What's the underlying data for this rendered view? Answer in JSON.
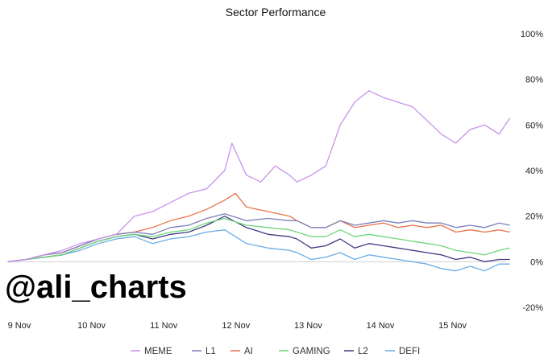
{
  "chart_data": {
    "type": "line",
    "title": "Sector Performance",
    "x_ticks": [
      "9 Nov",
      "10 Nov",
      "11 Nov",
      "12 Nov",
      "13 Nov",
      "14 Nov",
      "15 Nov"
    ],
    "x_range": [
      0,
      6.95
    ],
    "y_ticks": [
      "100%",
      "80%",
      "60%",
      "40%",
      "20%",
      "0%",
      "-20%"
    ],
    "y_tick_values": [
      100,
      80,
      60,
      40,
      20,
      0,
      -20
    ],
    "ylim": [
      -20,
      100
    ],
    "y_axis_side": "right",
    "grid": false,
    "legend_position": "bottom",
    "series": [
      {
        "name": "MEME",
        "color": "#c792ea",
        "points": [
          [
            0,
            0
          ],
          [
            0.25,
            1
          ],
          [
            0.5,
            3
          ],
          [
            0.75,
            5
          ],
          [
            1,
            8
          ],
          [
            1.25,
            10
          ],
          [
            1.5,
            12
          ],
          [
            1.75,
            20
          ],
          [
            2,
            22
          ],
          [
            2.25,
            26
          ],
          [
            2.5,
            30
          ],
          [
            2.75,
            32
          ],
          [
            3,
            40
          ],
          [
            3.1,
            52
          ],
          [
            3.3,
            38
          ],
          [
            3.5,
            35
          ],
          [
            3.7,
            42
          ],
          [
            3.9,
            38
          ],
          [
            4,
            35
          ],
          [
            4.2,
            38
          ],
          [
            4.4,
            42
          ],
          [
            4.6,
            60
          ],
          [
            4.8,
            70
          ],
          [
            5,
            75
          ],
          [
            5.2,
            72
          ],
          [
            5.4,
            70
          ],
          [
            5.6,
            68
          ],
          [
            5.8,
            62
          ],
          [
            6,
            56
          ],
          [
            6.2,
            52
          ],
          [
            6.4,
            58
          ],
          [
            6.6,
            60
          ],
          [
            6.8,
            56
          ],
          [
            6.95,
            63
          ]
        ]
      },
      {
        "name": "L1",
        "color": "#7b7fb8",
        "points": [
          [
            0,
            0
          ],
          [
            0.25,
            1
          ],
          [
            0.5,
            3
          ],
          [
            0.75,
            4
          ],
          [
            1,
            7
          ],
          [
            1.25,
            10
          ],
          [
            1.5,
            12
          ],
          [
            1.75,
            13
          ],
          [
            2,
            12
          ],
          [
            2.25,
            15
          ],
          [
            2.5,
            16
          ],
          [
            2.75,
            19
          ],
          [
            3,
            21
          ],
          [
            3.3,
            18
          ],
          [
            3.6,
            19
          ],
          [
            3.9,
            18
          ],
          [
            4,
            18
          ],
          [
            4.2,
            15
          ],
          [
            4.4,
            15
          ],
          [
            4.6,
            18
          ],
          [
            4.8,
            16
          ],
          [
            5,
            17
          ],
          [
            5.2,
            18
          ],
          [
            5.4,
            17
          ],
          [
            5.6,
            18
          ],
          [
            5.8,
            17
          ],
          [
            6,
            17
          ],
          [
            6.2,
            15
          ],
          [
            6.4,
            16
          ],
          [
            6.6,
            15
          ],
          [
            6.8,
            17
          ],
          [
            6.95,
            16
          ]
        ]
      },
      {
        "name": "AI",
        "color": "#e8734a",
        "points": [
          [
            0,
            0
          ],
          [
            0.25,
            1
          ],
          [
            0.5,
            3
          ],
          [
            0.75,
            4
          ],
          [
            1,
            7
          ],
          [
            1.25,
            10
          ],
          [
            1.5,
            12
          ],
          [
            1.75,
            13
          ],
          [
            2,
            15
          ],
          [
            2.25,
            18
          ],
          [
            2.5,
            20
          ],
          [
            2.75,
            23
          ],
          [
            3,
            27
          ],
          [
            3.15,
            30
          ],
          [
            3.3,
            24
          ],
          [
            3.6,
            22
          ],
          [
            3.9,
            20
          ],
          [
            4,
            18
          ],
          [
            4.2,
            15
          ],
          [
            4.4,
            15
          ],
          [
            4.6,
            18
          ],
          [
            4.8,
            15
          ],
          [
            5,
            16
          ],
          [
            5.2,
            17
          ],
          [
            5.4,
            15
          ],
          [
            5.6,
            16
          ],
          [
            5.8,
            15
          ],
          [
            6,
            16
          ],
          [
            6.2,
            13
          ],
          [
            6.4,
            14
          ],
          [
            6.6,
            13
          ],
          [
            6.8,
            14
          ],
          [
            6.95,
            13
          ]
        ]
      },
      {
        "name": "GAMING",
        "color": "#6fd67a",
        "points": [
          [
            0,
            0
          ],
          [
            0.25,
            1
          ],
          [
            0.5,
            2
          ],
          [
            0.75,
            3
          ],
          [
            1,
            6
          ],
          [
            1.25,
            9
          ],
          [
            1.5,
            11
          ],
          [
            1.75,
            12
          ],
          [
            2,
            11
          ],
          [
            2.25,
            13
          ],
          [
            2.5,
            14
          ],
          [
            2.75,
            17
          ],
          [
            3,
            19
          ],
          [
            3.3,
            16
          ],
          [
            3.6,
            15
          ],
          [
            3.9,
            14
          ],
          [
            4,
            13
          ],
          [
            4.2,
            11
          ],
          [
            4.4,
            11
          ],
          [
            4.6,
            14
          ],
          [
            4.8,
            11
          ],
          [
            5,
            12
          ],
          [
            5.2,
            11
          ],
          [
            5.4,
            10
          ],
          [
            5.6,
            9
          ],
          [
            5.8,
            8
          ],
          [
            6,
            7
          ],
          [
            6.2,
            5
          ],
          [
            6.4,
            4
          ],
          [
            6.6,
            3
          ],
          [
            6.8,
            5
          ],
          [
            6.95,
            6
          ]
        ]
      },
      {
        "name": "L2",
        "color": "#3f3a80",
        "points": [
          [
            0,
            0
          ],
          [
            0.25,
            1
          ],
          [
            0.5,
            2
          ],
          [
            0.75,
            3
          ],
          [
            1,
            6
          ],
          [
            1.25,
            9
          ],
          [
            1.5,
            11
          ],
          [
            1.75,
            12
          ],
          [
            2,
            10
          ],
          [
            2.25,
            12
          ],
          [
            2.5,
            13
          ],
          [
            2.75,
            16
          ],
          [
            3,
            20
          ],
          [
            3.3,
            15
          ],
          [
            3.6,
            12
          ],
          [
            3.9,
            11
          ],
          [
            4,
            10
          ],
          [
            4.2,
            6
          ],
          [
            4.4,
            7
          ],
          [
            4.6,
            10
          ],
          [
            4.8,
            6
          ],
          [
            5,
            8
          ],
          [
            5.2,
            7
          ],
          [
            5.4,
            6
          ],
          [
            5.6,
            5
          ],
          [
            5.8,
            4
          ],
          [
            6,
            3
          ],
          [
            6.2,
            1
          ],
          [
            6.4,
            2
          ],
          [
            6.6,
            0
          ],
          [
            6.8,
            1
          ],
          [
            6.95,
            1
          ]
        ]
      },
      {
        "name": "DEFI",
        "color": "#6aaee8",
        "points": [
          [
            0,
            0
          ],
          [
            0.25,
            1
          ],
          [
            0.5,
            2
          ],
          [
            0.75,
            3
          ],
          [
            1,
            5
          ],
          [
            1.25,
            8
          ],
          [
            1.5,
            10
          ],
          [
            1.75,
            11
          ],
          [
            2,
            8
          ],
          [
            2.25,
            10
          ],
          [
            2.5,
            11
          ],
          [
            2.75,
            13
          ],
          [
            3,
            14
          ],
          [
            3.3,
            8
          ],
          [
            3.6,
            6
          ],
          [
            3.9,
            5
          ],
          [
            4,
            4
          ],
          [
            4.2,
            1
          ],
          [
            4.4,
            2
          ],
          [
            4.6,
            4
          ],
          [
            4.8,
            1
          ],
          [
            5,
            3
          ],
          [
            5.2,
            2
          ],
          [
            5.4,
            1
          ],
          [
            5.6,
            0
          ],
          [
            5.8,
            -1
          ],
          [
            6,
            -3
          ],
          [
            6.2,
            -4
          ],
          [
            6.4,
            -2
          ],
          [
            6.6,
            -4
          ],
          [
            6.8,
            -1
          ],
          [
            6.95,
            -1
          ]
        ]
      }
    ]
  },
  "watermark": "@ali_charts"
}
